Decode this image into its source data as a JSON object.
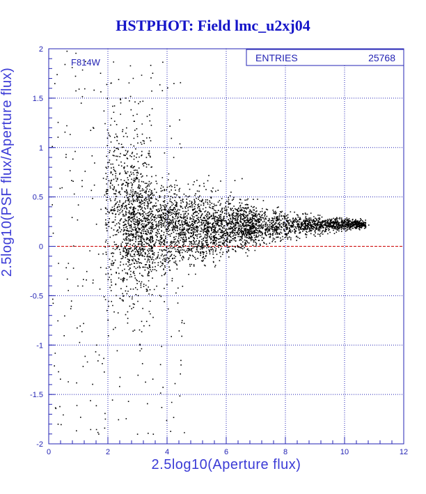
{
  "title": "HSTPHOT: Field lmc_u2xj04",
  "filter_label": "F814W",
  "stats_box": {
    "entries_label": "ENTRIES",
    "entries_value": "25768"
  },
  "colors": {
    "axis": "#2323b4",
    "grid": "#2323b4",
    "points": "#000000",
    "zero_line": "#cc0000",
    "title": "#1414c8"
  },
  "chart_data": {
    "type": "scatter",
    "title": "HSTPHOT: Field lmc_u2xj04",
    "xlabel": "2.5log10(Aperture flux)",
    "ylabel": "2.5log10(PSF flux/Aperture flux)",
    "xlim": [
      0,
      12
    ],
    "ylim": [
      -2,
      2
    ],
    "x_ticks": [
      0,
      2,
      4,
      6,
      8,
      10,
      12
    ],
    "y_ticks": [
      -2,
      -1.5,
      -1,
      -0.5,
      0,
      0.5,
      1,
      1.5,
      2
    ],
    "grid": true,
    "reference_line_y": 0,
    "n_entries": 25768,
    "points_sample": [
      [
        0.6,
        1.98
      ],
      [
        0.9,
        1.96
      ],
      [
        1.2,
        1.6
      ],
      [
        1.5,
        1.2
      ],
      [
        2.1,
        1.3
      ],
      [
        2.4,
        1.5
      ],
      [
        0.4,
        -1.8
      ],
      [
        1.4,
        -1.85
      ],
      [
        2.0,
        -0.9
      ],
      [
        2.6,
        -1.74
      ],
      [
        3.0,
        -1.3
      ],
      [
        3.2,
        -0.8
      ],
      [
        3.0,
        0.5
      ],
      [
        4.0,
        0.2
      ],
      [
        5.0,
        0.15
      ],
      [
        6.0,
        0.15
      ],
      [
        7.0,
        0.12
      ],
      [
        8.0,
        0.1
      ],
      [
        9.0,
        0.18
      ],
      [
        10.0,
        0.22
      ],
      [
        10.5,
        0.24
      ],
      [
        10.8,
        0.22
      ]
    ]
  }
}
